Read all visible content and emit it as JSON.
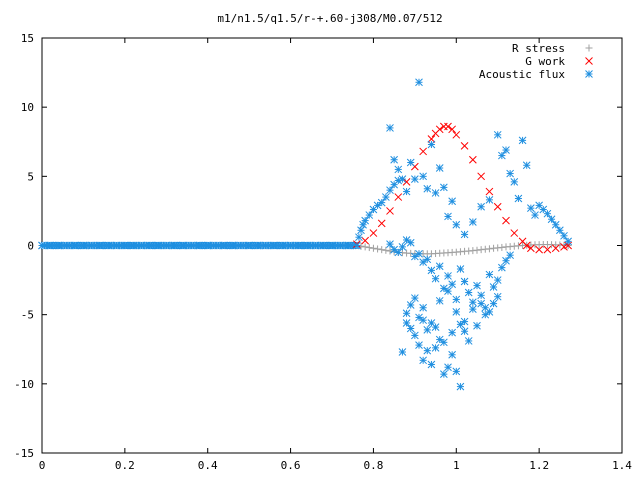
{
  "chart_data": {
    "type": "scatter",
    "title": "m1/n1.5/q1.5/r-+.60-j308/M0.07/512",
    "xlabel": "",
    "ylabel": "",
    "xlim": [
      0,
      1.4
    ],
    "ylim": [
      -15,
      15
    ],
    "x_ticks": [
      "0",
      "0.2",
      "0.4",
      "0.6",
      "0.8",
      "1",
      "1.2",
      "1.4"
    ],
    "y_ticks": [
      "15",
      "10",
      "5",
      "0",
      "-5",
      "-10",
      "-15"
    ],
    "grid": false,
    "legend_position": "top-right",
    "series": [
      {
        "name": "R stress",
        "marker": "+",
        "color": "#a0a0a0",
        "points": [
          [
            0.76,
            0.0
          ],
          [
            0.77,
            -0.05
          ],
          [
            0.78,
            -0.1
          ],
          [
            0.79,
            -0.15
          ],
          [
            0.8,
            -0.2
          ],
          [
            0.81,
            -0.25
          ],
          [
            0.82,
            -0.3
          ],
          [
            0.83,
            -0.35
          ],
          [
            0.84,
            -0.4
          ],
          [
            0.85,
            -0.45
          ],
          [
            0.86,
            -0.5
          ],
          [
            0.87,
            -0.52
          ],
          [
            0.88,
            -0.55
          ],
          [
            0.89,
            -0.57
          ],
          [
            0.9,
            -0.6
          ],
          [
            0.91,
            -0.6
          ],
          [
            0.92,
            -0.6
          ],
          [
            0.93,
            -0.6
          ],
          [
            0.94,
            -0.6
          ],
          [
            0.95,
            -0.58
          ],
          [
            0.96,
            -0.56
          ],
          [
            0.97,
            -0.54
          ],
          [
            0.98,
            -0.52
          ],
          [
            0.99,
            -0.5
          ],
          [
            1.0,
            -0.48
          ],
          [
            1.01,
            -0.45
          ],
          [
            1.02,
            -0.42
          ],
          [
            1.03,
            -0.4
          ],
          [
            1.04,
            -0.37
          ],
          [
            1.05,
            -0.34
          ],
          [
            1.06,
            -0.3
          ],
          [
            1.07,
            -0.27
          ],
          [
            1.08,
            -0.24
          ],
          [
            1.09,
            -0.2
          ],
          [
            1.1,
            -0.17
          ],
          [
            1.11,
            -0.14
          ],
          [
            1.12,
            -0.1
          ],
          [
            1.13,
            -0.08
          ],
          [
            1.14,
            -0.05
          ],
          [
            1.15,
            -0.02
          ],
          [
            1.16,
            0.0
          ],
          [
            1.17,
            0.02
          ],
          [
            1.18,
            0.04
          ],
          [
            1.19,
            0.05
          ],
          [
            1.2,
            0.06
          ],
          [
            1.21,
            0.07
          ],
          [
            1.22,
            0.07
          ],
          [
            1.23,
            0.06
          ],
          [
            1.24,
            0.05
          ],
          [
            1.25,
            0.04
          ],
          [
            1.26,
            0.02
          ],
          [
            1.27,
            0.0
          ]
        ]
      },
      {
        "name": "G work",
        "marker": "x",
        "color": "#ff0000",
        "points": [
          [
            0.76,
            0.1
          ],
          [
            0.78,
            0.35
          ],
          [
            0.8,
            0.9
          ],
          [
            0.82,
            1.6
          ],
          [
            0.84,
            2.5
          ],
          [
            0.86,
            3.5
          ],
          [
            0.88,
            4.6
          ],
          [
            0.9,
            5.7
          ],
          [
            0.92,
            6.8
          ],
          [
            0.94,
            7.7
          ],
          [
            0.95,
            8.1
          ],
          [
            0.96,
            8.4
          ],
          [
            0.97,
            8.6
          ],
          [
            0.98,
            8.6
          ],
          [
            0.99,
            8.4
          ],
          [
            1.0,
            8.0
          ],
          [
            1.02,
            7.2
          ],
          [
            1.04,
            6.2
          ],
          [
            1.06,
            5.0
          ],
          [
            1.08,
            3.9
          ],
          [
            1.1,
            2.8
          ],
          [
            1.12,
            1.8
          ],
          [
            1.14,
            0.9
          ],
          [
            1.16,
            0.3
          ],
          [
            1.17,
            0.0
          ],
          [
            1.18,
            -0.2
          ],
          [
            1.2,
            -0.3
          ],
          [
            1.22,
            -0.3
          ],
          [
            1.24,
            -0.2
          ],
          [
            1.26,
            -0.1
          ],
          [
            1.27,
            0.0
          ]
        ]
      },
      {
        "name": "Acoustic flux",
        "marker": "*",
        "color": "#1f8fe0",
        "points": [
          [
            0.0,
            0.0
          ],
          [
            0.02,
            0.0
          ],
          [
            0.04,
            0.0
          ],
          [
            0.06,
            0.0
          ],
          [
            0.08,
            0.0
          ],
          [
            0.1,
            0.0
          ],
          [
            0.12,
            0.0
          ],
          [
            0.14,
            0.0
          ],
          [
            0.16,
            0.0
          ],
          [
            0.18,
            0.0
          ],
          [
            0.2,
            0.0
          ],
          [
            0.22,
            0.0
          ],
          [
            0.24,
            0.0
          ],
          [
            0.26,
            0.0
          ],
          [
            0.28,
            0.0
          ],
          [
            0.3,
            0.0
          ],
          [
            0.32,
            0.0
          ],
          [
            0.34,
            0.0
          ],
          [
            0.36,
            0.0
          ],
          [
            0.38,
            0.0
          ],
          [
            0.4,
            0.0
          ],
          [
            0.42,
            0.0
          ],
          [
            0.44,
            0.0
          ],
          [
            0.46,
            0.0
          ],
          [
            0.48,
            0.0
          ],
          [
            0.5,
            0.0
          ],
          [
            0.52,
            0.0
          ],
          [
            0.54,
            0.0
          ],
          [
            0.56,
            0.0
          ],
          [
            0.58,
            0.0
          ],
          [
            0.6,
            0.0
          ],
          [
            0.62,
            0.0
          ],
          [
            0.64,
            0.0
          ],
          [
            0.66,
            0.0
          ],
          [
            0.68,
            0.0
          ],
          [
            0.7,
            0.0
          ],
          [
            0.72,
            0.0
          ],
          [
            0.74,
            0.0
          ],
          [
            0.76,
            0.0
          ],
          [
            0.765,
            0.6
          ],
          [
            0.77,
            1.1
          ],
          [
            0.775,
            1.5
          ],
          [
            0.78,
            1.8
          ],
          [
            0.79,
            2.2
          ],
          [
            0.8,
            2.6
          ],
          [
            0.81,
            2.9
          ],
          [
            0.82,
            3.1
          ],
          [
            0.83,
            3.5
          ],
          [
            0.84,
            4.0
          ],
          [
            0.85,
            4.4
          ],
          [
            0.86,
            4.7
          ],
          [
            0.84,
            8.5
          ],
          [
            0.85,
            6.2
          ],
          [
            0.86,
            5.5
          ],
          [
            0.87,
            4.8
          ],
          [
            0.88,
            3.9
          ],
          [
            0.89,
            6.0
          ],
          [
            0.9,
            4.8
          ],
          [
            0.91,
            11.8
          ],
          [
            0.92,
            5.0
          ],
          [
            0.93,
            4.1
          ],
          [
            0.94,
            7.3
          ],
          [
            0.95,
            3.8
          ],
          [
            0.96,
            5.6
          ],
          [
            0.97,
            4.2
          ],
          [
            0.98,
            2.1
          ],
          [
            0.99,
            3.2
          ],
          [
            1.0,
            1.5
          ],
          [
            1.02,
            0.8
          ],
          [
            1.04,
            1.7
          ],
          [
            1.06,
            2.8
          ],
          [
            1.08,
            3.3
          ],
          [
            1.1,
            8.0
          ],
          [
            1.11,
            6.5
          ],
          [
            1.12,
            6.9
          ],
          [
            1.13,
            5.2
          ],
          [
            1.14,
            4.6
          ],
          [
            1.15,
            3.4
          ],
          [
            1.16,
            7.6
          ],
          [
            1.17,
            5.8
          ],
          [
            1.18,
            2.7
          ],
          [
            1.19,
            2.2
          ],
          [
            1.2,
            2.9
          ],
          [
            1.21,
            2.6
          ],
          [
            1.22,
            2.3
          ],
          [
            1.23,
            1.9
          ],
          [
            1.24,
            1.5
          ],
          [
            1.25,
            1.1
          ],
          [
            1.26,
            0.7
          ],
          [
            1.27,
            0.3
          ],
          [
            0.84,
            0.1
          ],
          [
            0.85,
            -0.3
          ],
          [
            0.86,
            -0.5
          ],
          [
            0.87,
            -0.1
          ],
          [
            0.88,
            0.4
          ],
          [
            0.89,
            0.2
          ],
          [
            0.9,
            -0.8
          ],
          [
            0.91,
            -0.6
          ],
          [
            0.92,
            -1.2
          ],
          [
            0.93,
            -1.0
          ],
          [
            0.94,
            -1.8
          ],
          [
            0.95,
            -2.4
          ],
          [
            0.96,
            -1.5
          ],
          [
            0.97,
            -3.1
          ],
          [
            0.98,
            -2.2
          ],
          [
            0.99,
            -2.8
          ],
          [
            1.0,
            -3.9
          ],
          [
            1.01,
            -1.7
          ],
          [
            1.02,
            -2.6
          ],
          [
            1.03,
            -3.4
          ],
          [
            1.04,
            -4.1
          ],
          [
            1.05,
            -2.9
          ],
          [
            1.06,
            -3.6
          ],
          [
            1.07,
            -4.5
          ],
          [
            1.08,
            -2.1
          ],
          [
            1.09,
            -3.0
          ],
          [
            1.1,
            -2.5
          ],
          [
            1.11,
            -1.6
          ],
          [
            1.12,
            -1.1
          ],
          [
            1.13,
            -0.7
          ],
          [
            0.88,
            -4.9
          ],
          [
            0.89,
            -6.0
          ],
          [
            0.9,
            -6.5
          ],
          [
            0.91,
            -7.2
          ],
          [
            0.92,
            -5.4
          ],
          [
            0.93,
            -6.1
          ],
          [
            0.94,
            -8.6
          ],
          [
            0.95,
            -7.4
          ],
          [
            0.96,
            -6.8
          ],
          [
            0.97,
            -9.3
          ],
          [
            0.98,
            -8.8
          ],
          [
            0.99,
            -7.9
          ],
          [
            1.0,
            -9.1
          ],
          [
            1.01,
            -10.2
          ],
          [
            1.02,
            -5.5
          ],
          [
            1.03,
            -6.9
          ],
          [
            1.04,
            -4.6
          ],
          [
            1.05,
            -5.8
          ],
          [
            1.06,
            -4.2
          ],
          [
            1.07,
            -5.0
          ],
          [
            0.9,
            -3.8
          ],
          [
            0.92,
            -4.5
          ],
          [
            0.94,
            -5.6
          ],
          [
            0.96,
            -4.0
          ],
          [
            0.98,
            -3.3
          ],
          [
            1.0,
            -4.8
          ],
          [
            1.02,
            -6.2
          ],
          [
            0.91,
            -5.2
          ],
          [
            0.93,
            -7.6
          ],
          [
            0.95,
            -5.9
          ],
          [
            0.97,
            -7.0
          ],
          [
            0.99,
            -6.3
          ],
          [
            1.01,
            -5.7
          ],
          [
            0.89,
            -4.3
          ],
          [
            1.08,
            -4.8
          ],
          [
            1.09,
            -4.2
          ],
          [
            1.1,
            -3.7
          ],
          [
            0.87,
            -7.7
          ],
          [
            0.88,
            -5.6
          ],
          [
            0.92,
            -8.3
          ]
        ]
      }
    ]
  }
}
